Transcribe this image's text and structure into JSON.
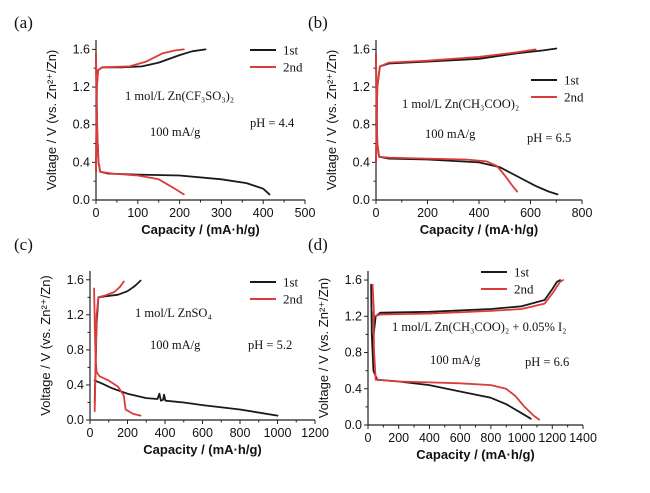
{
  "colors": {
    "first": "#1a1a1a",
    "second": "#dd3b3b",
    "axis": "#222222"
  },
  "chart_data": [
    {
      "panel_label": "(a)",
      "type": "line",
      "xlabel": "Capacity / (mA·h/g)",
      "ylabel": "Voltage / V (vs. Zn²⁺/Zn)",
      "xlim": [
        0,
        500
      ],
      "ylim": [
        0,
        1.7
      ],
      "xticks": [
        "0",
        "100",
        "200",
        "300",
        "400",
        "500"
      ],
      "yticks": [
        "0.0",
        "0.4",
        "0.8",
        "1.2",
        "1.6"
      ],
      "annotations": [
        "1 mol/L Zn(CF₃SO₃)₂",
        "100 mA/g",
        "pH = 4.4"
      ],
      "legend": "top-right",
      "series": [
        {
          "name": "1st",
          "color": "#1a1a1a",
          "charge": [
            [
              0,
              0.3
            ],
            [
              2,
              1.2
            ],
            [
              5,
              1.38
            ],
            [
              15,
              1.41
            ],
            [
              60,
              1.41
            ],
            [
              110,
              1.42
            ],
            [
              150,
              1.46
            ],
            [
              200,
              1.54
            ],
            [
              230,
              1.58
            ],
            [
              262,
              1.6
            ]
          ],
          "discharge": [
            [
              0,
              1.55
            ],
            [
              1,
              1.2
            ],
            [
              3,
              0.7
            ],
            [
              6,
              0.4
            ],
            [
              10,
              0.3
            ],
            [
              30,
              0.28
            ],
            [
              100,
              0.27
            ],
            [
              200,
              0.26
            ],
            [
              300,
              0.22
            ],
            [
              360,
              0.18
            ],
            [
              400,
              0.12
            ],
            [
              415,
              0.06
            ]
          ]
        },
        {
          "name": "2nd",
          "color": "#dd3b3b",
          "charge": [
            [
              0,
              0.3
            ],
            [
              2,
              1.2
            ],
            [
              5,
              1.38
            ],
            [
              15,
              1.41
            ],
            [
              80,
              1.42
            ],
            [
              120,
              1.47
            ],
            [
              160,
              1.56
            ],
            [
              190,
              1.59
            ],
            [
              210,
              1.6
            ]
          ],
          "discharge": [
            [
              0,
              1.55
            ],
            [
              1,
              1.2
            ],
            [
              3,
              0.7
            ],
            [
              6,
              0.4
            ],
            [
              10,
              0.3
            ],
            [
              40,
              0.28
            ],
            [
              100,
              0.26
            ],
            [
              150,
              0.22
            ],
            [
              185,
              0.13
            ],
            [
              210,
              0.06
            ]
          ]
        }
      ]
    },
    {
      "panel_label": "(b)",
      "type": "line",
      "xlabel": "Capacity / (mA·h/g)",
      "ylabel": "Voltage / V (vs. Zn²⁺/Zn)",
      "xlim": [
        0,
        800
      ],
      "ylim": [
        0,
        1.7
      ],
      "xticks": [
        "0",
        "200",
        "400",
        "600",
        "800"
      ],
      "yticks": [
        "0.0",
        "0.4",
        "0.8",
        "1.2",
        "1.6"
      ],
      "annotations": [
        "1 mol/L Zn(CH₃COO)₂",
        "100 mA/g",
        "pH = 6.5"
      ],
      "legend": "top-right",
      "series": [
        {
          "name": "1st",
          "color": "#1a1a1a",
          "charge": [
            [
              0,
              0.4
            ],
            [
              5,
              1.2
            ],
            [
              15,
              1.42
            ],
            [
              50,
              1.45
            ],
            [
              200,
              1.47
            ],
            [
              400,
              1.5
            ],
            [
              550,
              1.56
            ],
            [
              650,
              1.59
            ],
            [
              700,
              1.61
            ]
          ],
          "discharge": [
            [
              0,
              1.55
            ],
            [
              2,
              1.0
            ],
            [
              5,
              0.6
            ],
            [
              12,
              0.46
            ],
            [
              50,
              0.44
            ],
            [
              200,
              0.43
            ],
            [
              400,
              0.4
            ],
            [
              480,
              0.35
            ],
            [
              550,
              0.25
            ],
            [
              620,
              0.15
            ],
            [
              670,
              0.09
            ],
            [
              705,
              0.06
            ]
          ]
        },
        {
          "name": "2nd",
          "color": "#dd3b3b",
          "charge": [
            [
              0,
              0.4
            ],
            [
              5,
              1.2
            ],
            [
              15,
              1.42
            ],
            [
              50,
              1.46
            ],
            [
              200,
              1.48
            ],
            [
              400,
              1.52
            ],
            [
              550,
              1.57
            ],
            [
              620,
              1.6
            ]
          ],
          "discharge": [
            [
              0,
              1.55
            ],
            [
              2,
              1.0
            ],
            [
              5,
              0.6
            ],
            [
              12,
              0.46
            ],
            [
              50,
              0.45
            ],
            [
              200,
              0.44
            ],
            [
              350,
              0.43
            ],
            [
              430,
              0.41
            ],
            [
              470,
              0.36
            ],
            [
              500,
              0.26
            ],
            [
              530,
              0.15
            ],
            [
              548,
              0.09
            ]
          ]
        }
      ]
    },
    {
      "panel_label": "(c)",
      "type": "line",
      "xlabel": "Capacity / (mA·h/g)",
      "ylabel": "Voltage / V (vs. Zn²⁺/Zn)",
      "xlim": [
        0,
        1200
      ],
      "ylim": [
        0,
        1.7
      ],
      "xticks": [
        "0",
        "200",
        "400",
        "600",
        "800",
        "1000",
        "1200"
      ],
      "yticks": [
        "0.0",
        "0.4",
        "0.8",
        "1.2",
        "1.6"
      ],
      "annotations": [
        "1 mol/L ZnSO₄",
        "100 mA/g",
        "pH = 5.2"
      ],
      "legend": "top-right",
      "series": [
        {
          "name": "1st",
          "color": "#1a1a1a",
          "charge": [
            [
              25,
              0.2
            ],
            [
              35,
              1.1
            ],
            [
              45,
              1.4
            ],
            [
              80,
              1.41
            ],
            [
              150,
              1.43
            ],
            [
              200,
              1.47
            ],
            [
              240,
              1.53
            ],
            [
              270,
              1.59
            ]
          ],
          "discharge": [
            [
              25,
              0.45
            ],
            [
              60,
              0.42
            ],
            [
              120,
              0.36
            ],
            [
              200,
              0.3
            ],
            [
              300,
              0.25
            ],
            [
              360,
              0.24
            ],
            [
              370,
              0.3
            ],
            [
              378,
              0.22
            ],
            [
              390,
              0.23
            ],
            [
              395,
              0.29
            ],
            [
              402,
              0.22
            ],
            [
              500,
              0.2
            ],
            [
              600,
              0.17
            ],
            [
              800,
              0.12
            ],
            [
              1000,
              0.05
            ]
          ]
        },
        {
          "name": "2nd",
          "color": "#dd3b3b",
          "charge": [
            [
              25,
              0.1
            ],
            [
              35,
              1.2
            ],
            [
              45,
              1.4
            ],
            [
              80,
              1.42
            ],
            [
              130,
              1.46
            ],
            [
              160,
              1.52
            ],
            [
              180,
              1.58
            ]
          ],
          "discharge": [
            [
              22,
              1.5
            ],
            [
              26,
              1.0
            ],
            [
              30,
              0.7
            ],
            [
              35,
              0.55
            ],
            [
              50,
              0.5
            ],
            [
              100,
              0.45
            ],
            [
              150,
              0.38
            ],
            [
              180,
              0.28
            ],
            [
              190,
              0.12
            ],
            [
              230,
              0.07
            ],
            [
              270,
              0.05
            ]
          ]
        }
      ]
    },
    {
      "panel_label": "(d)",
      "type": "line",
      "xlabel": "Capacity / (mA·h/g)",
      "ylabel": "Voltage / V (vs. Zn²⁺/Zn)",
      "xlim": [
        0,
        1400
      ],
      "ylim": [
        0,
        1.7
      ],
      "xticks": [
        "0",
        "200",
        "400",
        "600",
        "800",
        "1000",
        "1200",
        "1400"
      ],
      "yticks": [
        "0.0",
        "0.4",
        "0.8",
        "1.2",
        "1.6"
      ],
      "annotations": [
        "1 mol/L Zn(CH₃COO)₂ + 0.05% I₂",
        "100 mA/g",
        "pH = 6.6"
      ],
      "legend": "top-center",
      "series": [
        {
          "name": "1st",
          "color": "#1a1a1a",
          "charge": [
            [
              30,
              0.9
            ],
            [
              50,
              1.2
            ],
            [
              80,
              1.24
            ],
            [
              400,
              1.25
            ],
            [
              800,
              1.28
            ],
            [
              1000,
              1.31
            ],
            [
              1150,
              1.38
            ],
            [
              1200,
              1.5
            ],
            [
              1230,
              1.58
            ],
            [
              1250,
              1.6
            ]
          ],
          "discharge": [
            [
              20,
              1.55
            ],
            [
              25,
              1.0
            ],
            [
              35,
              0.6
            ],
            [
              60,
              0.5
            ],
            [
              200,
              0.48
            ],
            [
              400,
              0.44
            ],
            [
              600,
              0.37
            ],
            [
              800,
              0.3
            ],
            [
              900,
              0.23
            ],
            [
              1000,
              0.13
            ],
            [
              1060,
              0.07
            ]
          ]
        },
        {
          "name": "2nd",
          "color": "#dd3b3b",
          "charge": [
            [
              30,
              1.55
            ],
            [
              40,
              1.2
            ],
            [
              80,
              1.22
            ],
            [
              400,
              1.23
            ],
            [
              800,
              1.26
            ],
            [
              1000,
              1.28
            ],
            [
              1150,
              1.34
            ],
            [
              1200,
              1.45
            ],
            [
              1250,
              1.58
            ],
            [
              1270,
              1.6
            ]
          ],
          "discharge": [
            [
              35,
              1.25
            ],
            [
              40,
              0.8
            ],
            [
              50,
              0.5
            ],
            [
              200,
              0.48
            ],
            [
              400,
              0.47
            ],
            [
              600,
              0.46
            ],
            [
              800,
              0.44
            ],
            [
              900,
              0.4
            ],
            [
              960,
              0.32
            ],
            [
              1020,
              0.2
            ],
            [
              1080,
              0.1
            ],
            [
              1115,
              0.06
            ]
          ]
        }
      ]
    }
  ]
}
